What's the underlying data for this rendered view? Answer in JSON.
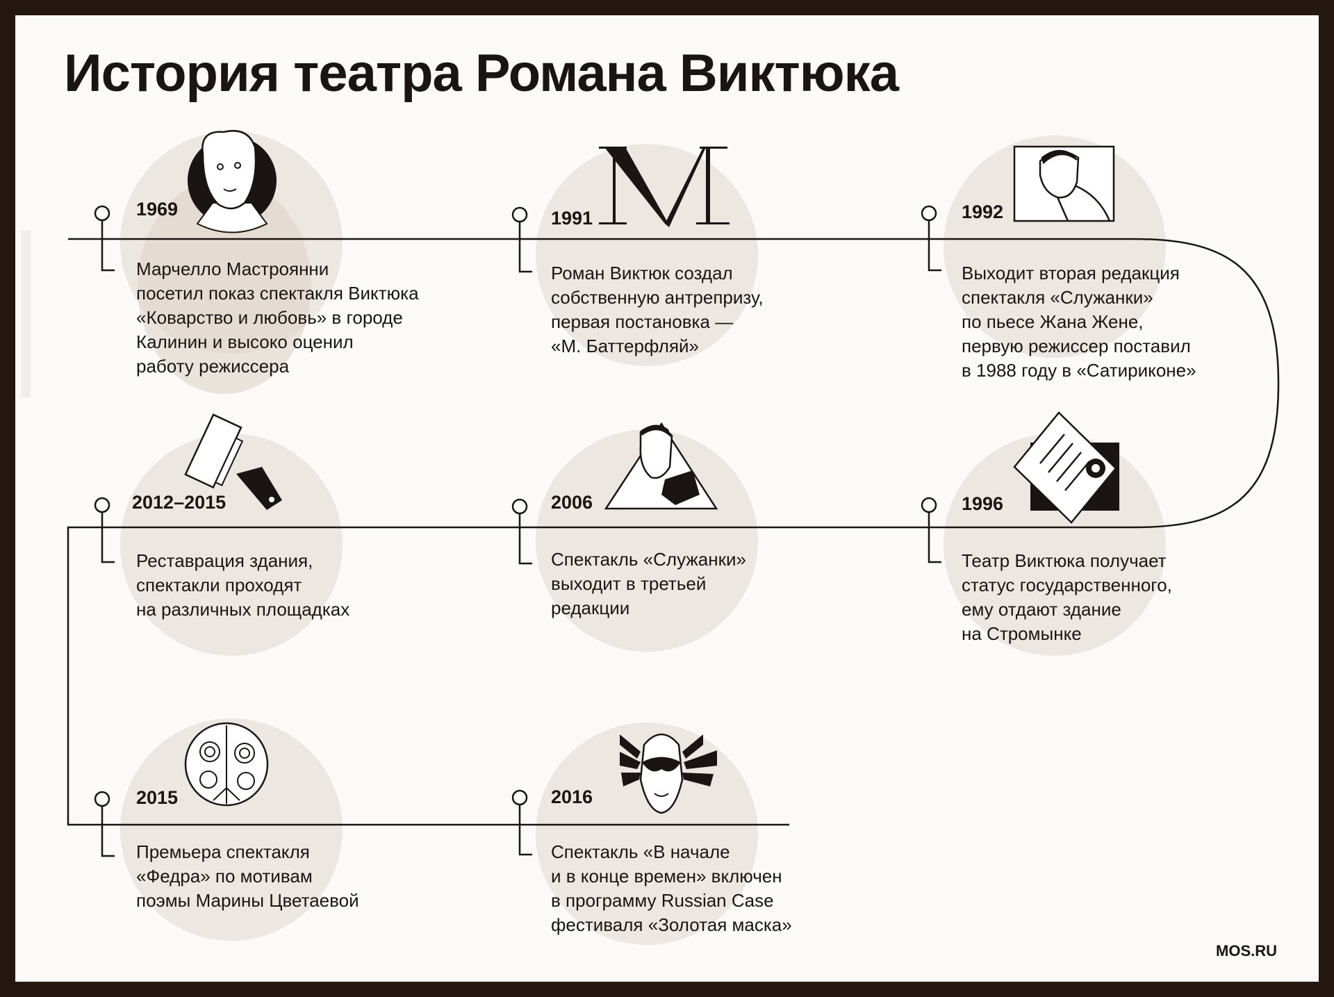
{
  "title": "История театра Романа Виктюка",
  "events": [
    {
      "year": "1969",
      "icon": "portrait-icon",
      "lines": [
        "Марчелло Мастроянни",
        "посетил показ спектакля Виктюка",
        "«Коварство и любовь» в городе",
        "Калинин и высоко оценил",
        "работу режиссера"
      ]
    },
    {
      "year": "1991",
      "icon": "letter-m-icon",
      "lines": [
        "Роман Виктюк создал",
        "собственную антрепризу,",
        "первая постановка —",
        "«М. Баттерфляй»"
      ]
    },
    {
      "year": "1992",
      "icon": "face-frame-icon",
      "lines": [
        "Выходит вторая редакция",
        "спектакля «Служанки»",
        "по пьесе Жана Жене,",
        "первую режиссер поставил",
        "в 1988 году в «Сатириконе»"
      ]
    },
    {
      "year": "1996",
      "icon": "signed-document-icon",
      "lines": [
        "Театр Виктюка получает",
        "статус государственного,",
        "ему отдают здание",
        "на Стромынке"
      ]
    },
    {
      "year": "2006",
      "icon": "face-triangle-icon",
      "lines": [
        "Спектакль «Служанки»",
        "выходит в третьей",
        "редакции"
      ]
    },
    {
      "year": "2012–2015",
      "icon": "paint-roller-icon",
      "lines": [
        "Реставрация здания,",
        "спектакли проходят",
        "на различных площадках"
      ]
    },
    {
      "year": "2015",
      "icon": "ornament-circle-icon",
      "lines": [
        "Премьера спектакля",
        "«Федра» по мотивам",
        "поэмы Марины Цветаевой"
      ]
    },
    {
      "year": "2016",
      "icon": "carnival-mask-icon",
      "lines": [
        "Спектакль «В начале",
        "и в конце времен» включен",
        "в программу Russian Case",
        "фестиваля «Золотая маска»"
      ]
    }
  ],
  "footer": {
    "brand": "MOS.RU"
  },
  "colors": {
    "frame": "#231710",
    "background": "#fbfaf8",
    "circle": "#ede7e1",
    "ink": "#1a1512"
  }
}
